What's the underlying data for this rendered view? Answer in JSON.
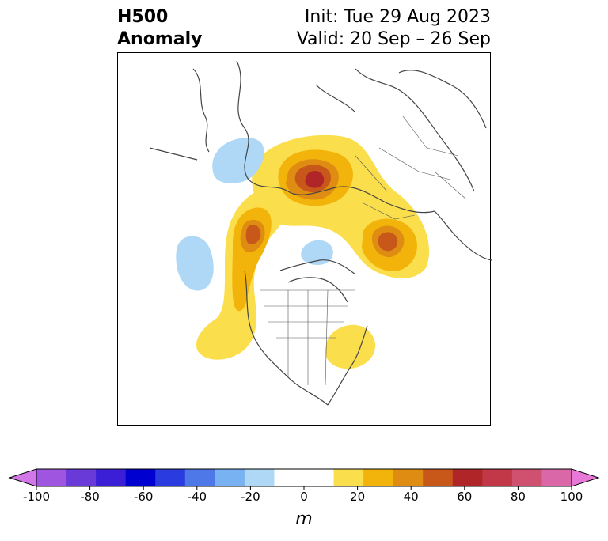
{
  "title": {
    "left_line1": "H500",
    "left_line2": "Anomaly",
    "right_line1": "Init: Tue 29 Aug 2023",
    "right_line2": "Valid: 20 Sep – 26 Sep"
  },
  "colorbar": {
    "unit_label": "m",
    "tick_labels": [
      "-100",
      "-80",
      "-60",
      "-40",
      "-20",
      "0",
      "20",
      "40",
      "60",
      "80",
      "100"
    ],
    "colors": [
      "#d276e8",
      "#a055e0",
      "#6a3ad8",
      "#3a1fd6",
      "#0000d0",
      "#2a3ce0",
      "#4e78e8",
      "#78b2f2",
      "#aed8f6",
      "#ffffff",
      "#ffffff",
      "#fbde4c",
      "#f2b40a",
      "#de8c12",
      "#c8581a",
      "#b02628",
      "#c23848",
      "#d05070",
      "#da68a8",
      "#e878d8"
    ],
    "extend": "both"
  },
  "map": {
    "projection": "north-polar-stereographic",
    "anomaly_colors": {
      "pos_10": "#fbde4c",
      "pos_20": "#f2b40a",
      "pos_30": "#de8c12",
      "pos_40": "#c8581a",
      "pos_50": "#b02628",
      "neg_10": "#aed8f6"
    }
  }
}
